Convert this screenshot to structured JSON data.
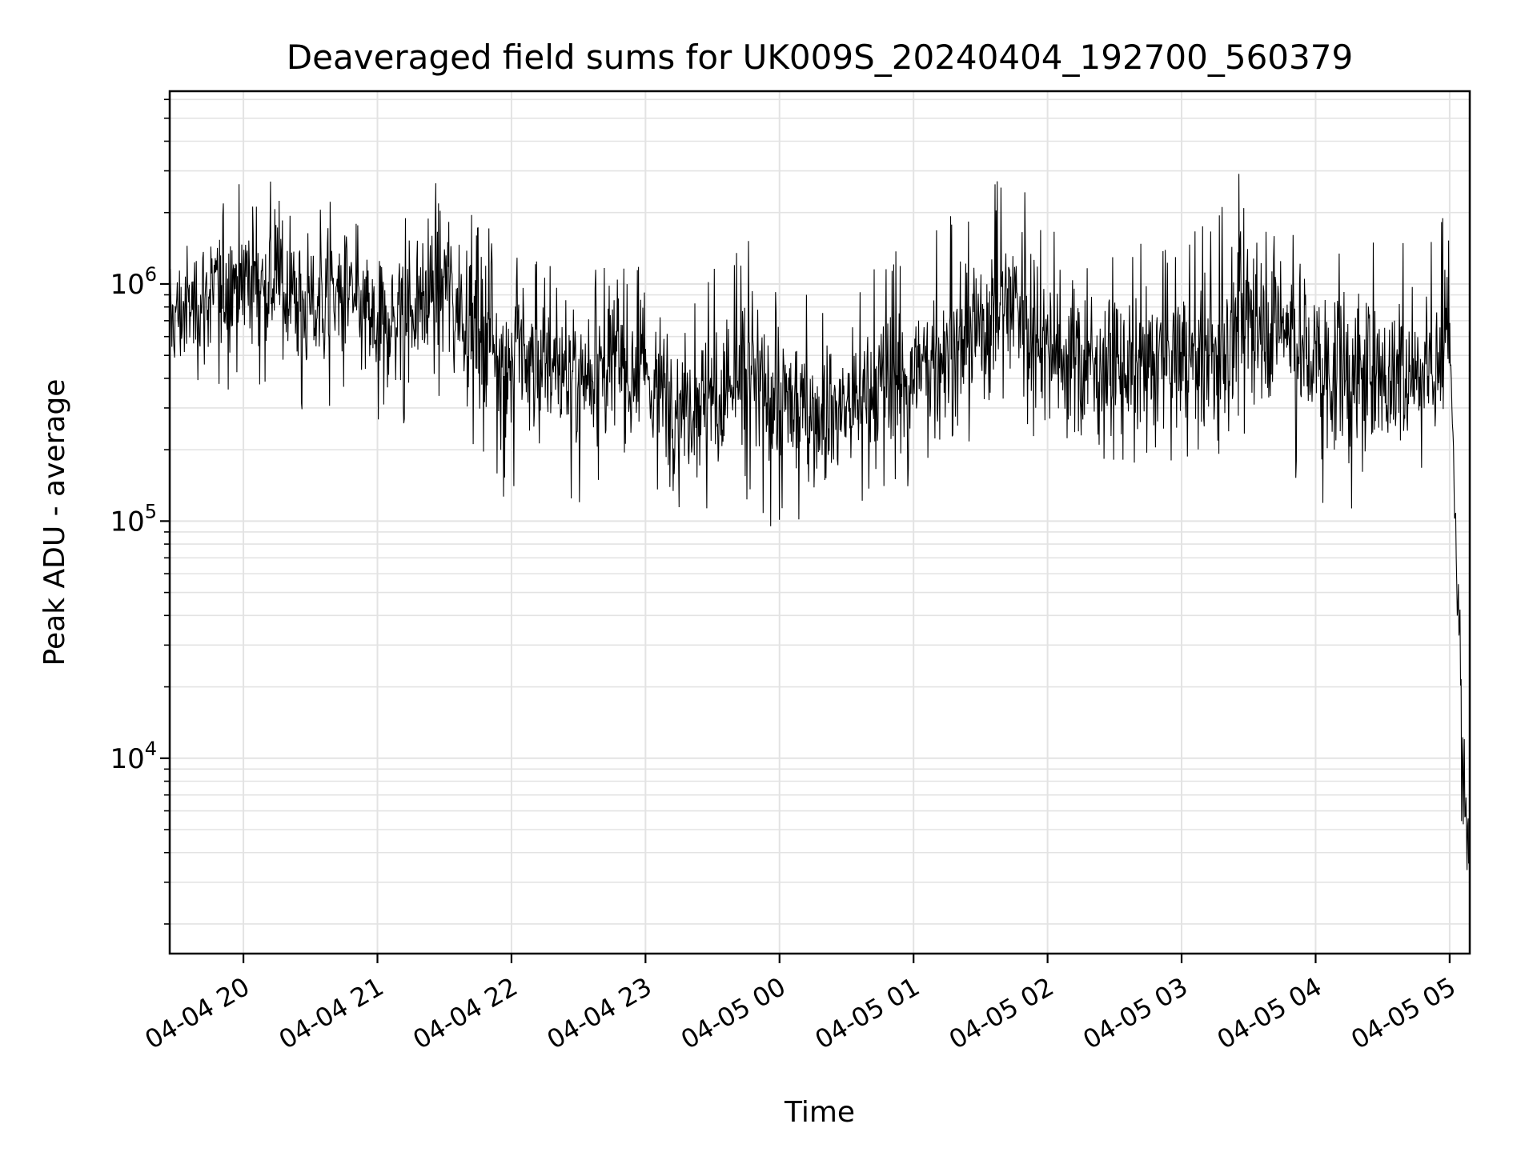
{
  "chart_data": {
    "type": "line",
    "title": "Deaveraged field sums for UK009S_20240404_192700_560379",
    "xlabel": "Time",
    "ylabel": "Peak ADU - average",
    "yscale": "log",
    "xlim": [
      "2024-04-04 19:27",
      "2024-04-05 05:09"
    ],
    "ylim": [
      1500,
      6500000
    ],
    "x_ticks": [
      {
        "t": "2024-04-04 20:00",
        "label": "04-04 20"
      },
      {
        "t": "2024-04-04 21:00",
        "label": "04-04 21"
      },
      {
        "t": "2024-04-04 22:00",
        "label": "04-04 22"
      },
      {
        "t": "2024-04-04 23:00",
        "label": "04-04 23"
      },
      {
        "t": "2024-04-05 00:00",
        "label": "04-05 00"
      },
      {
        "t": "2024-04-05 01:00",
        "label": "04-05 01"
      },
      {
        "t": "2024-04-05 02:00",
        "label": "04-05 02"
      },
      {
        "t": "2024-04-05 03:00",
        "label": "04-05 03"
      },
      {
        "t": "2024-04-05 04:00",
        "label": "04-05 04"
      },
      {
        "t": "2024-04-05 05:00",
        "label": "04-05 05"
      }
    ],
    "y_ticks": [
      {
        "value": 10000,
        "base": "10",
        "exp": "4"
      },
      {
        "value": 100000,
        "base": "10",
        "exp": "5"
      },
      {
        "value": 1000000,
        "base": "10",
        "exp": "6"
      }
    ],
    "grid": true,
    "line_color": "#000000",
    "series": [
      {
        "x": [
          "2024-04-04 19:27",
          "2024-04-04 19:45",
          "2024-04-04 20:00",
          "2024-04-04 20:15",
          "2024-04-04 20:30",
          "2024-04-04 20:45",
          "2024-04-04 21:00",
          "2024-04-04 21:15",
          "2024-04-04 21:30",
          "2024-04-04 21:45",
          "2024-04-04 22:00",
          "2024-04-04 22:15",
          "2024-04-04 22:30",
          "2024-04-04 22:45",
          "2024-04-04 23:00",
          "2024-04-04 23:15",
          "2024-04-04 23:30",
          "2024-04-04 23:45",
          "2024-04-05 00:00",
          "2024-04-05 00:15",
          "2024-04-05 00:30",
          "2024-04-05 00:45",
          "2024-04-05 01:00",
          "2024-04-05 01:15",
          "2024-04-05 01:30",
          "2024-04-05 01:45",
          "2024-04-05 02:00",
          "2024-04-05 02:15",
          "2024-04-05 02:30",
          "2024-04-05 02:45",
          "2024-04-05 03:00",
          "2024-04-05 03:15",
          "2024-04-05 03:30",
          "2024-04-05 03:45",
          "2024-04-05 04:00",
          "2024-04-05 04:15",
          "2024-04-05 04:30",
          "2024-04-05 04:45",
          "2024-04-05 05:00",
          "2024-04-05 05:03",
          "2024-04-05 05:06",
          "2024-04-05 05:09"
        ],
        "y": [
          700000,
          900000,
          1100000,
          1000000,
          800000,
          900000,
          650000,
          800000,
          1000000,
          650000,
          500000,
          450000,
          420000,
          450000,
          400000,
          320000,
          330000,
          380000,
          330000,
          280000,
          300000,
          350000,
          420000,
          500000,
          650000,
          900000,
          550000,
          450000,
          450000,
          450000,
          500000,
          450000,
          800000,
          700000,
          450000,
          400000,
          400000,
          450000,
          500000,
          100000,
          8000,
          3000
        ],
        "low": [
          250000,
          300000,
          350000,
          300000,
          250000,
          300000,
          250000,
          250000,
          220000,
          200000,
          110000,
          120000,
          120000,
          120000,
          110000,
          100000,
          100000,
          110000,
          90000,
          90000,
          100000,
          120000,
          140000,
          180000,
          200000,
          250000,
          150000,
          150000,
          150000,
          160000,
          170000,
          170000,
          200000,
          180000,
          110000,
          110000,
          130000,
          140000,
          130000,
          30000,
          2500,
          2000
        ],
        "high": [
          1500000,
          2200000,
          3000000,
          2500000,
          1800000,
          3200000,
          1700000,
          2500000,
          3500000,
          2000000,
          1500000,
          1300000,
          1200000,
          1300000,
          1200000,
          900000,
          1200000,
          1800000,
          1000000,
          900000,
          1000000,
          1500000,
          1400000,
          2000000,
          2500000,
          3500000,
          1800000,
          1500000,
          1400000,
          1500000,
          1800000,
          2000000,
          3600000,
          2500000,
          1500000,
          1500000,
          1800000,
          1800000,
          2000000,
          400000,
          20000,
          10000
        ]
      }
    ]
  }
}
